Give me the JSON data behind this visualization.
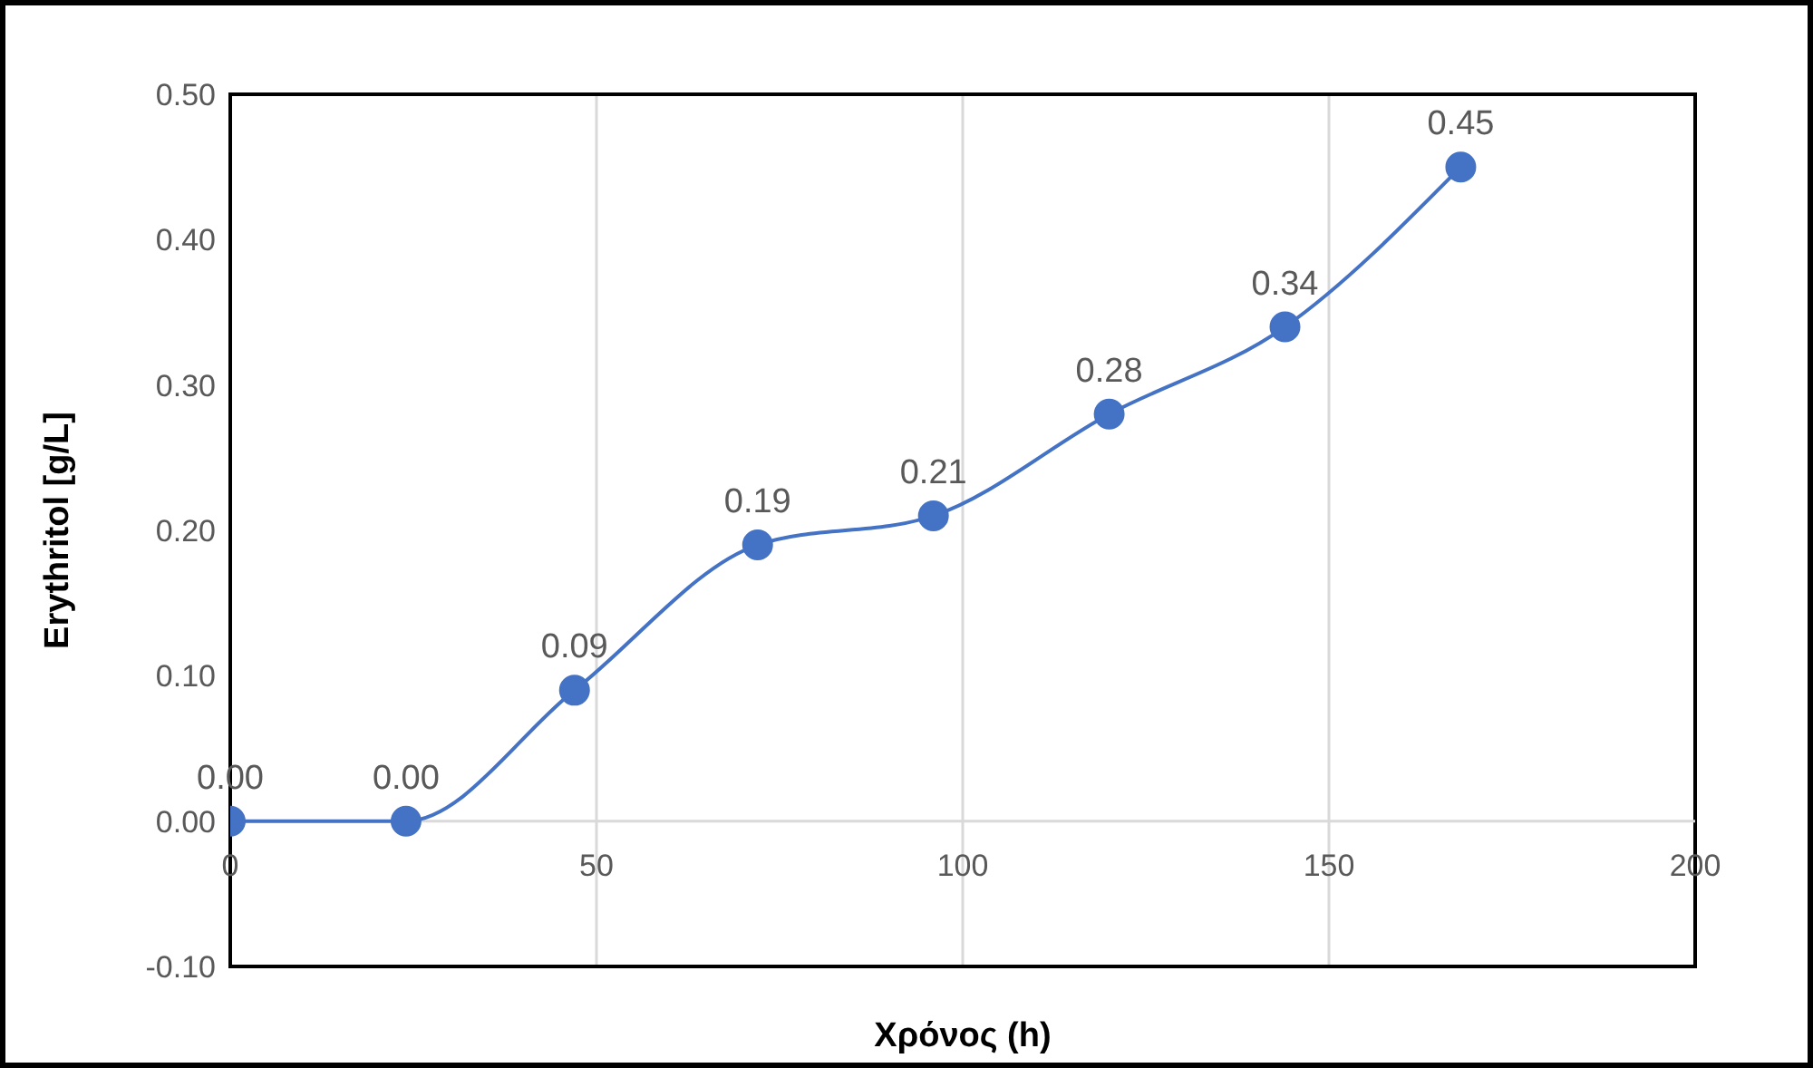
{
  "chart_data": {
    "type": "line",
    "xlabel": "Χρόνος (h)",
    "ylabel": "Erythritol  [g/L]",
    "x": [
      0,
      24,
      47,
      72,
      96,
      120,
      144,
      168
    ],
    "series": [
      {
        "color": "#4472c4",
        "values": [
          0,
          0,
          0.09,
          0.19,
          0.21,
          0.28,
          0.34,
          0.45
        ],
        "value_labels": [
          "0.00",
          "0.00",
          "0.09",
          "0.19",
          "0.21",
          "0.28",
          "0.34",
          "0.45"
        ]
      }
    ],
    "xlim": [
      0,
      200
    ],
    "xticks": [
      0,
      50,
      100,
      150,
      200
    ],
    "ylim": [
      -0.1,
      0.5
    ],
    "yticks": [
      {
        "value": -0.1,
        "label": "-0.10"
      },
      {
        "value": 0,
        "label": "0.00"
      },
      {
        "value": 0.1,
        "label": "0.10"
      },
      {
        "value": 0.2,
        "label": "0.20"
      },
      {
        "value": 0.3,
        "label": "0.30"
      },
      {
        "value": 0.4,
        "label": "0.40"
      },
      {
        "value": 0.5,
        "label": "0.50"
      }
    ],
    "grid": "x",
    "marker": "circle",
    "line_style": "solid",
    "legend": false
  }
}
